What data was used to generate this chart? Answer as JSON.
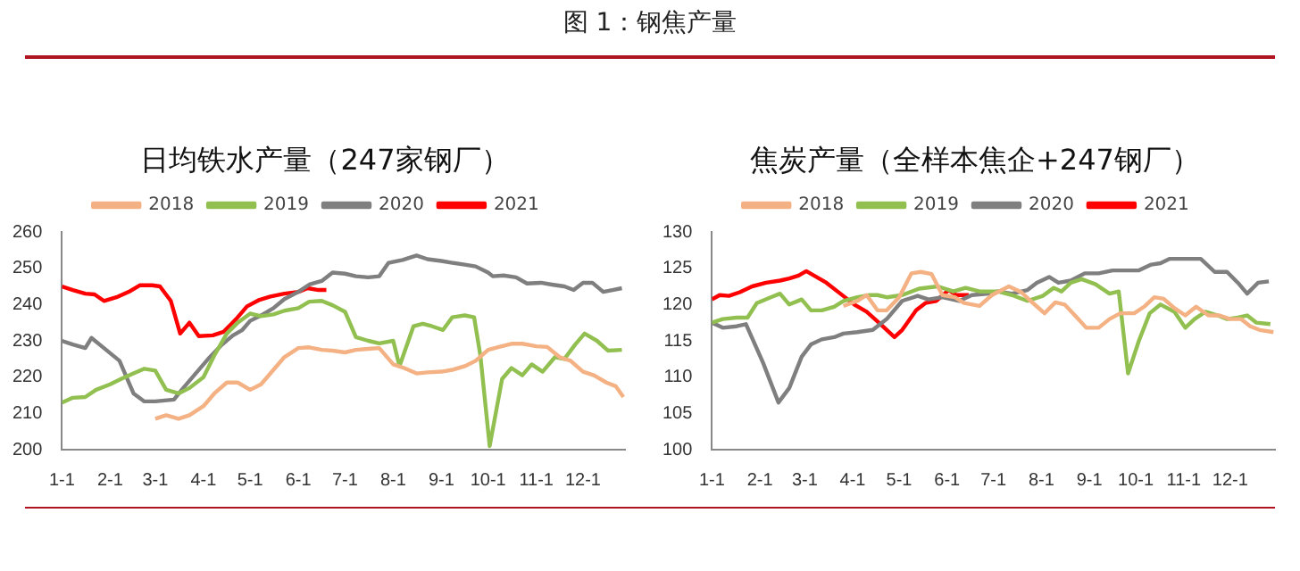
{
  "chart_data": [
    {
      "type": "line",
      "title": "日均铁水产量（247家钢厂）",
      "annotations": [
        "图 1：钢焦产量"
      ],
      "xlim": [
        "--01-01",
        "--12-28"
      ],
      "xticks": [
        {
          "value": "--01-01",
          "label": "1-1"
        },
        {
          "value": "--02-01",
          "label": "2-1"
        },
        {
          "value": "--03-01",
          "label": "3-1"
        },
        {
          "value": "--04-01",
          "label": "4-1"
        },
        {
          "value": "--05-01",
          "label": "5-1"
        },
        {
          "value": "--06-01",
          "label": "6-1"
        },
        {
          "value": "--07-01",
          "label": "7-1"
        },
        {
          "value": "--08-01",
          "label": "8-1"
        },
        {
          "value": "--09-01",
          "label": "9-1"
        },
        {
          "value": "--10-01",
          "label": "10-1"
        },
        {
          "value": "--11-01",
          "label": "11-1"
        },
        {
          "value": "--12-01",
          "label": "12-1"
        }
      ],
      "ylim": [
        200,
        260
      ],
      "yticks": [
        200,
        210,
        220,
        230,
        240,
        250,
        260
      ],
      "grid": false,
      "legend": "top",
      "marker": "none",
      "line_style": "solid",
      "series": [
        {
          "name": "2018",
          "color": "#f4b183",
          "x": [
            "--03-01",
            "--03-08",
            "--03-16",
            "--03-23",
            "--04-01",
            "--04-08",
            "--04-16",
            "--04-23",
            "--05-01",
            "--05-08",
            "--05-16",
            "--05-23",
            "--06-01",
            "--06-08",
            "--06-16",
            "--06-23",
            "--07-01",
            "--07-08",
            "--07-16",
            "--07-23",
            "--08-01",
            "--08-08",
            "--08-16",
            "--08-23",
            "--09-01",
            "--09-08",
            "--09-16",
            "--09-23",
            "--10-01",
            "--10-08",
            "--10-16",
            "--10-23",
            "--11-01",
            "--11-08",
            "--11-16",
            "--11-23",
            "--12-01",
            "--12-08",
            "--12-16",
            "--12-22",
            "--12-27"
          ],
          "values": [
            208.5,
            209.5,
            208.5,
            209.5,
            212,
            215.5,
            218.5,
            218.5,
            216.5,
            218,
            222,
            225.5,
            228,
            228.2,
            227.5,
            227.3,
            226.8,
            227.5,
            227.8,
            228,
            223.5,
            222.5,
            221,
            221.3,
            221.5,
            222,
            223,
            224.5,
            227.5,
            228.3,
            229.2,
            229.2,
            228.5,
            228.3,
            225.5,
            224.5,
            221.5,
            220.5,
            218.5,
            217.5,
            214.5
          ]
        },
        {
          "name": "2019",
          "color": "#92c050",
          "x": [
            "--01-01",
            "--01-08",
            "--01-16",
            "--01-23",
            "--02-01",
            "--02-08",
            "--02-16",
            "--02-23",
            "--03-01",
            "--03-08",
            "--03-16",
            "--03-23",
            "--04-01",
            "--04-08",
            "--04-16",
            "--04-23",
            "--05-01",
            "--05-08",
            "--05-16",
            "--05-23",
            "--06-01",
            "--06-08",
            "--06-16",
            "--06-23",
            "--07-01",
            "--07-08",
            "--07-16",
            "--07-23",
            "--08-01",
            "--08-05",
            "--08-14",
            "--08-20",
            "--08-26",
            "--09-02",
            "--09-08",
            "--09-16",
            "--09-22",
            "--09-26",
            "--10-02",
            "--10-10",
            "--10-16",
            "--10-23",
            "--10-29",
            "--11-05",
            "--11-13",
            "--11-19",
            "--11-26",
            "--12-02",
            "--12-10",
            "--12-17",
            "--12-26"
          ],
          "values": [
            213,
            214.3,
            214.5,
            216.5,
            218,
            219.5,
            221,
            222.3,
            221.8,
            216.5,
            215.5,
            217,
            220,
            226,
            232,
            235,
            237.5,
            236.8,
            237.3,
            238.3,
            239,
            240.8,
            241,
            239.8,
            238,
            231,
            230,
            229.3,
            230,
            223,
            234,
            234.7,
            234,
            233,
            236.5,
            237,
            236.5,
            226,
            201,
            219.5,
            222.5,
            220.5,
            223.5,
            221.5,
            225.5,
            225,
            229,
            232,
            230,
            227.3,
            227.5
          ]
        },
        {
          "name": "2020",
          "color": "#7f7f7f",
          "x": [
            "--01-01",
            "--01-08",
            "--01-16",
            "--01-20",
            "--01-28",
            "--02-07",
            "--02-16",
            "--02-23",
            "--03-01",
            "--03-13",
            "--03-19",
            "--03-26",
            "--04-04",
            "--04-13",
            "--04-20",
            "--04-26",
            "--05-01",
            "--05-08",
            "--05-16",
            "--05-23",
            "--06-01",
            "--06-08",
            "--06-16",
            "--06-23",
            "--07-01",
            "--07-08",
            "--07-16",
            "--07-23",
            "--07-29",
            "--08-07",
            "--08-16",
            "--08-23",
            "--09-01",
            "--09-08",
            "--09-16",
            "--09-23",
            "--10-01",
            "--10-04",
            "--10-11",
            "--10-19",
            "--10-26",
            "--11-04",
            "--11-11",
            "--11-19",
            "--11-25",
            "--12-01",
            "--12-07",
            "--12-14",
            "--12-20",
            "--12-26"
          ],
          "values": [
            230,
            229,
            228,
            230.8,
            228,
            224.5,
            215.5,
            213.3,
            213.3,
            213.8,
            217,
            220.5,
            225,
            229,
            231.5,
            233,
            235.5,
            237,
            239,
            241.5,
            243.5,
            245.5,
            246.5,
            248.8,
            248.5,
            247.8,
            247.5,
            247.8,
            251.5,
            252.3,
            253.5,
            252.5,
            252,
            251.5,
            251,
            250.5,
            248.8,
            247.8,
            248,
            247.5,
            245.8,
            246,
            245.5,
            245,
            244,
            246,
            246,
            243.5,
            244,
            244.5
          ]
        },
        {
          "name": "2021",
          "color": "#ff0000",
          "x": [
            "--01-01",
            "--01-08",
            "--01-16",
            "--01-22",
            "--01-28",
            "--02-05",
            "--02-13",
            "--02-20",
            "--02-28",
            "--03-04",
            "--03-11",
            "--03-17",
            "--03-23",
            "--03-29",
            "--04-07",
            "--04-14",
            "--04-22",
            "--04-29",
            "--05-07",
            "--05-14",
            "--05-23",
            "--06-01",
            "--06-07",
            "--06-14",
            "--06-19"
          ],
          "values": [
            245,
            244,
            243,
            242.8,
            241,
            242,
            243.5,
            245.3,
            245.3,
            245,
            241,
            232,
            235,
            231.3,
            231.5,
            232.5,
            236,
            239.5,
            241.3,
            242.2,
            243,
            243.5,
            244.5,
            244,
            244
          ]
        }
      ]
    },
    {
      "type": "line",
      "title": "焦炭产量（全样本焦企+247钢厂）",
      "xlim": [
        "--01-01",
        "--12-30"
      ],
      "xticks": [
        {
          "value": "--01-01",
          "label": "1-1"
        },
        {
          "value": "--02-01",
          "label": "2-1"
        },
        {
          "value": "--03-01",
          "label": "3-1"
        },
        {
          "value": "--04-01",
          "label": "4-1"
        },
        {
          "value": "--05-01",
          "label": "5-1"
        },
        {
          "value": "--06-01",
          "label": "6-1"
        },
        {
          "value": "--07-01",
          "label": "7-1"
        },
        {
          "value": "--08-01",
          "label": "8-1"
        },
        {
          "value": "--09-01",
          "label": "9-1"
        },
        {
          "value": "--10-01",
          "label": "10-1"
        },
        {
          "value": "--11-01",
          "label": "11-1"
        },
        {
          "value": "--12-01",
          "label": "12-1"
        }
      ],
      "ylim": [
        100,
        130
      ],
      "yticks": [
        100,
        105,
        110,
        115,
        120,
        125,
        130
      ],
      "grid": false,
      "legend": "top",
      "marker": "none",
      "line_style": "solid",
      "series": [
        {
          "name": "2018",
          "color": "#f4b183",
          "x": [
            "--03-26",
            "--04-04",
            "--04-10",
            "--04-17",
            "--04-23",
            "--05-01",
            "--05-09",
            "--05-15",
            "--05-22",
            "--05-29",
            "--06-06",
            "--06-12",
            "--06-22",
            "--06-30",
            "--07-11",
            "--07-19",
            "--07-25",
            "--08-03",
            "--08-10",
            "--08-16",
            "--08-24",
            "--08-30",
            "--09-07",
            "--09-14",
            "--09-21",
            "--09-30",
            "--10-07",
            "--10-13",
            "--10-19",
            "--10-26",
            "--11-02",
            "--11-09",
            "--11-17",
            "--11-24",
            "--12-01",
            "--12-08",
            "--12-14",
            "--12-20",
            "--12-29"
          ],
          "values": [
            119.8,
            120.5,
            121.3,
            119.2,
            119.2,
            121,
            124.3,
            124.5,
            124.2,
            121.3,
            121,
            120.2,
            119.8,
            121.3,
            122.5,
            121.7,
            120.5,
            118.8,
            120.3,
            120,
            118.2,
            116.8,
            116.8,
            118,
            118.8,
            118.8,
            119.8,
            121,
            120.8,
            119.5,
            118.5,
            119.7,
            118.5,
            118.5,
            118,
            118,
            117,
            116.5,
            116.2
          ]
        },
        {
          "name": "2019",
          "color": "#92c050",
          "x": [
            "--01-01",
            "--01-08",
            "--01-17",
            "--01-24",
            "--01-30",
            "--02-08",
            "--02-14",
            "--02-20",
            "--02-28",
            "--03-05",
            "--03-12",
            "--03-20",
            "--03-26",
            "--04-04",
            "--04-12",
            "--04-17",
            "--04-23",
            "--05-03",
            "--05-14",
            "--05-26",
            "--06-05",
            "--06-13",
            "--06-22",
            "--07-04",
            "--07-13",
            "--07-23",
            "--08-02",
            "--08-09",
            "--08-14",
            "--08-20",
            "--08-27",
            "--09-05",
            "--09-14",
            "--09-20",
            "--09-26",
            "--10-03",
            "--10-10",
            "--10-17",
            "--10-26",
            "--11-02",
            "--11-08",
            "--11-15",
            "--11-23",
            "--11-29",
            "--12-06",
            "--12-12",
            "--12-18",
            "--12-27"
          ],
          "values": [
            117.5,
            118,
            118.2,
            118.2,
            120.2,
            121,
            121.5,
            120,
            120.7,
            119.2,
            119.2,
            119.7,
            120.5,
            121,
            121.3,
            121.3,
            121,
            121.3,
            122.2,
            122.5,
            121.8,
            122.3,
            121.8,
            121.8,
            121.3,
            120.5,
            121.2,
            122.3,
            121.8,
            123,
            123.5,
            122.8,
            121.5,
            121.8,
            110.5,
            115,
            118.8,
            120,
            119,
            116.8,
            118,
            119,
            118.5,
            118,
            118.2,
            118.5,
            117.5,
            117.3
          ]
        },
        {
          "name": "2020",
          "color": "#7f7f7f",
          "x": [
            "--01-01",
            "--01-08",
            "--01-17",
            "--01-23",
            "--02-03",
            "--02-13",
            "--02-20",
            "--02-28",
            "--03-05",
            "--03-12",
            "--03-20",
            "--03-26",
            "--04-04",
            "--04-14",
            "--04-23",
            "--05-03",
            "--05-13",
            "--05-20",
            "--05-29",
            "--06-09",
            "--06-17",
            "--06-28",
            "--07-04",
            "--07-13",
            "--07-23",
            "--07-29",
            "--08-06",
            "--08-12",
            "--08-20",
            "--08-29",
            "--09-07",
            "--09-16",
            "--09-24",
            "--10-03",
            "--10-11",
            "--10-17",
            "--10-23",
            "--11-12",
            "--11-21",
            "--11-29",
            "--12-06",
            "--12-12",
            "--12-19",
            "--12-26"
          ],
          "values": [
            117.5,
            116.8,
            117,
            117.3,
            112,
            106.5,
            108.5,
            112.8,
            114.5,
            115.2,
            115.5,
            116,
            116.2,
            116.5,
            118,
            120.5,
            121.2,
            120.7,
            121,
            120.5,
            121.3,
            121.5,
            121.8,
            121.5,
            122,
            123,
            123.8,
            123,
            123.3,
            124.3,
            124.3,
            124.7,
            124.7,
            124.7,
            125.5,
            125.7,
            126.3,
            126.3,
            124.5,
            124.5,
            123,
            121.5,
            123,
            123.2
          ]
        },
        {
          "name": "2021",
          "color": "#ff0000",
          "x": [
            "--01-01",
            "--01-06",
            "--01-12",
            "--01-19",
            "--01-27",
            "--02-05",
            "--02-14",
            "--02-20",
            "--02-26",
            "--03-02",
            "--03-07",
            "--03-15",
            "--03-24",
            "--04-02",
            "--04-10",
            "--04-19",
            "--04-28",
            "--05-03",
            "--05-12",
            "--05-18",
            "--05-25",
            "--06-02",
            "--06-07",
            "--06-15"
          ],
          "values": [
            120.7,
            121.3,
            121.2,
            121.7,
            122.5,
            123,
            123.3,
            123.6,
            124,
            124.6,
            124,
            123,
            121.5,
            120,
            119,
            117.3,
            115.5,
            116.5,
            119.2,
            120.2,
            120.5,
            122,
            121.3,
            121.3
          ]
        }
      ]
    }
  ]
}
